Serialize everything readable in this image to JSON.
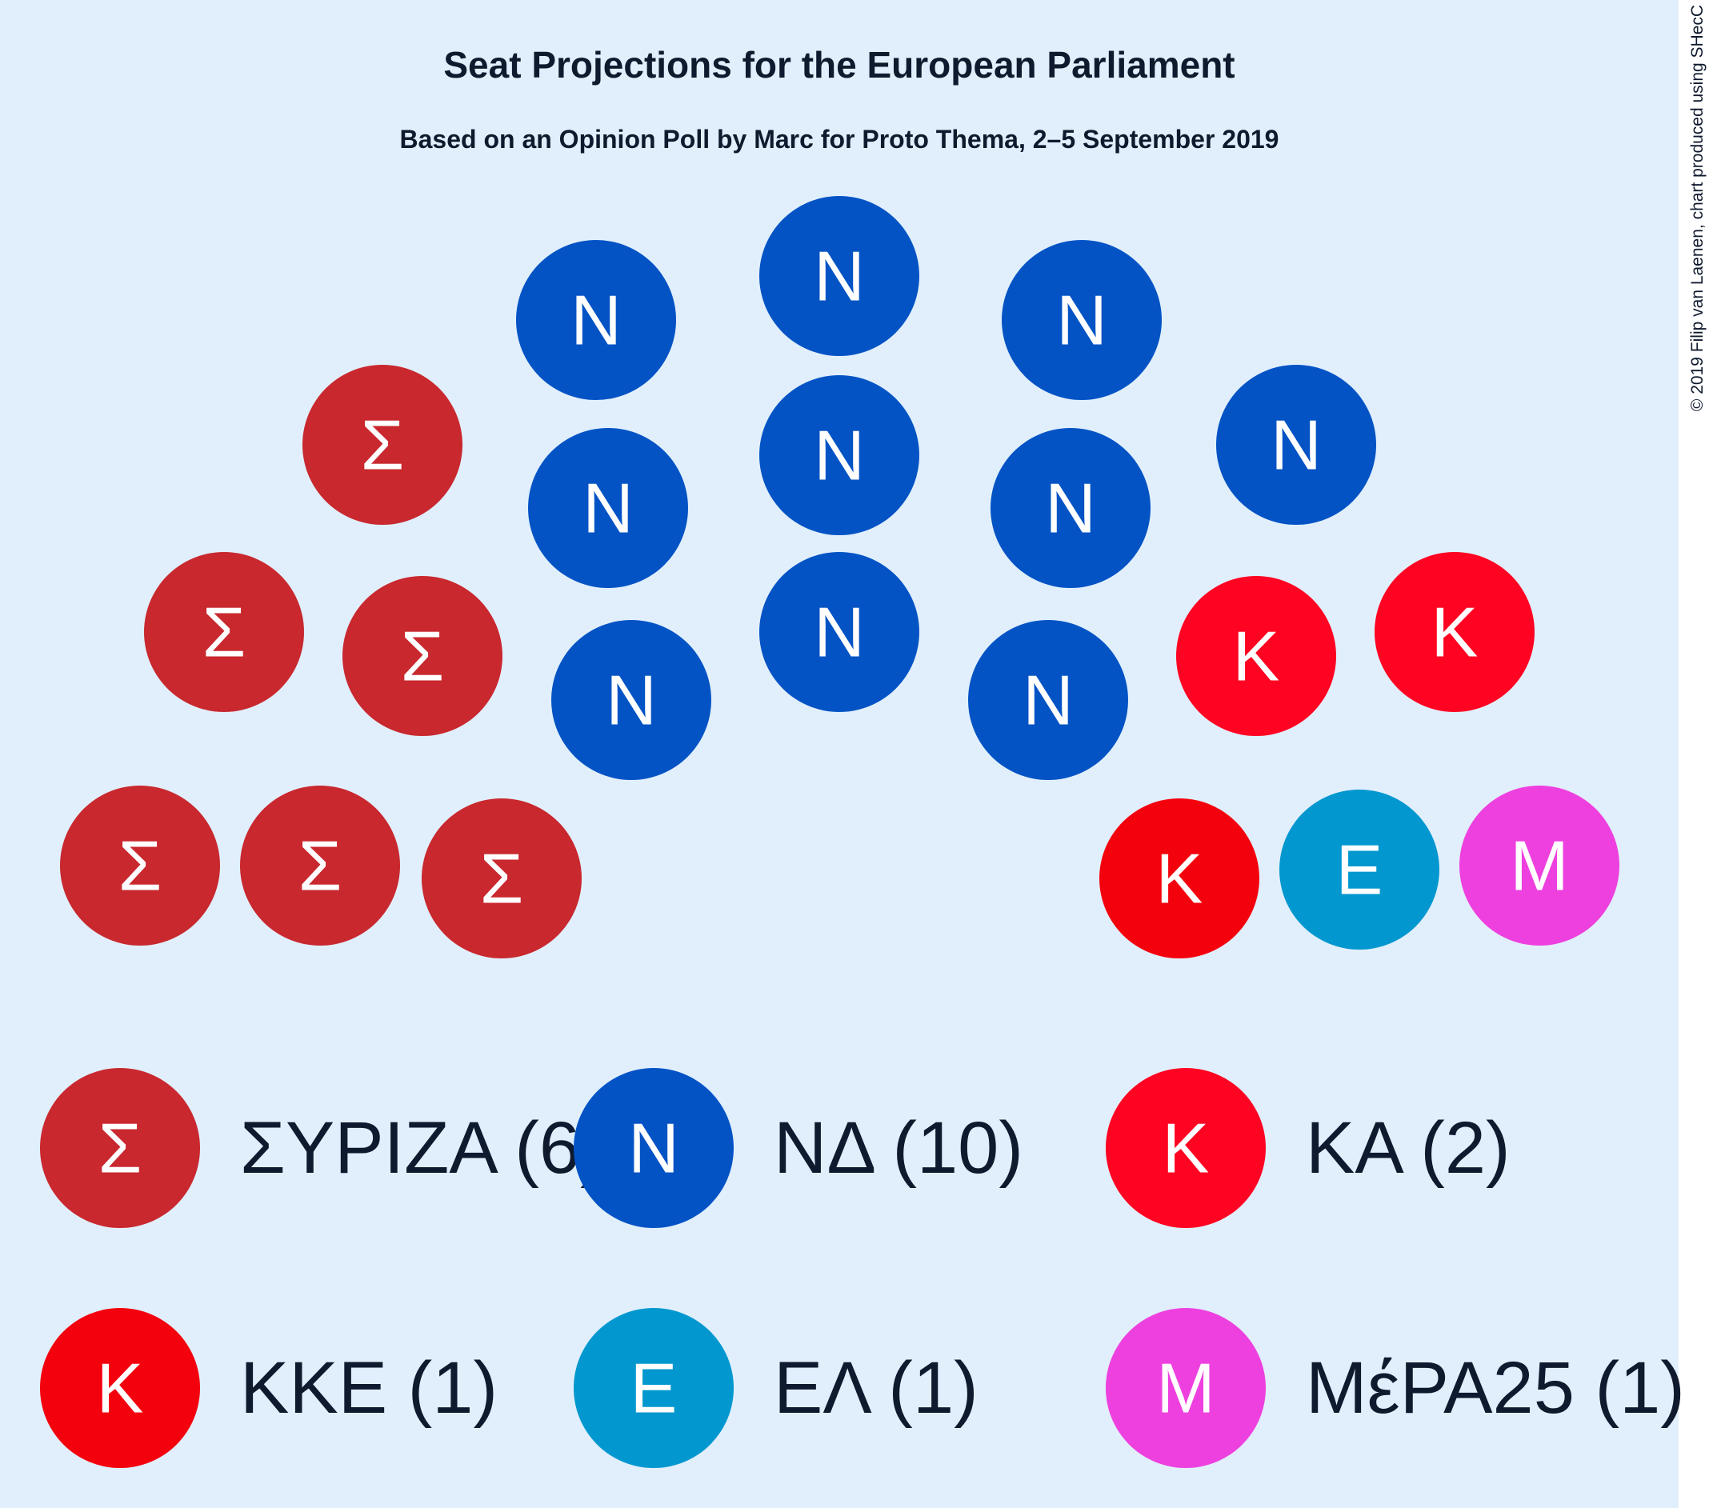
{
  "chart_data": {
    "type": "parliament",
    "title": "Seat Projections for the European Parliament",
    "subtitle": "Based on an Opinion Poll by Marc for Proto Thema, 2–5 September 2019",
    "copyright": "© 2019 Filip van Laenen, chart produced using SHecC",
    "colors": {
      "background": "#e1effc"
    },
    "parties": [
      {
        "id": "syriza",
        "name": "ΣΥΡΙΖΑ",
        "seats": 6,
        "letter": "Σ",
        "color": "#c8282e",
        "legend": "ΣΥΡΙΖΑ (6)"
      },
      {
        "id": "nd",
        "name": "ΝΔ",
        "seats": 10,
        "letter": "N",
        "color": "#0353c5",
        "legend": "ΝΔ (10)"
      },
      {
        "id": "ka",
        "name": "ΚΑ",
        "seats": 2,
        "letter": "K",
        "color": "#fe0322",
        "legend": "ΚΑ (2)"
      },
      {
        "id": "kke",
        "name": "ΚΚΕ",
        "seats": 1,
        "letter": "K",
        "color": "#f3020d",
        "legend": "ΚΚΕ (1)"
      },
      {
        "id": "el",
        "name": "ΕΛ",
        "seats": 1,
        "letter": "E",
        "color": "#0297cf",
        "legend": "ΕΛ (1)"
      },
      {
        "id": "mera25",
        "name": "ΜέΡΑ25",
        "seats": 1,
        "letter": "M",
        "color": "#ee40df",
        "legend": "ΜέΡΑ25 (1)"
      }
    ]
  }
}
